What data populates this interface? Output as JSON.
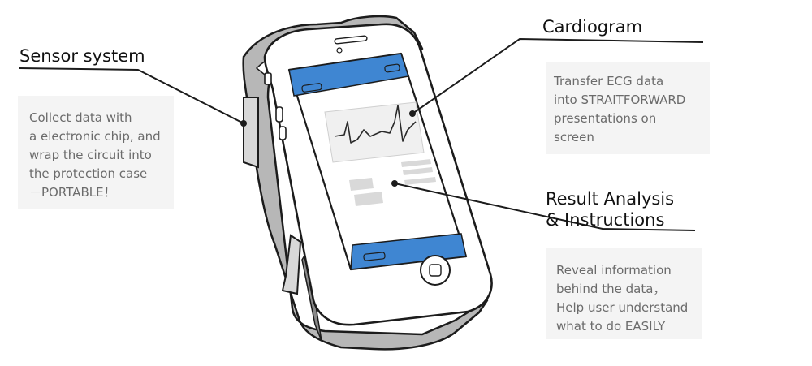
{
  "labels": {
    "sensor": {
      "title": "Sensor system",
      "lines": [
        "Collect data with",
        "a electronic chip, and",
        "wrap the circuit into",
        "the protection case",
        "－PORTABLE！"
      ]
    },
    "cardiogram": {
      "title": "Cardiogram",
      "lines": [
        "Transfer ECG data",
        "into STRAITFORWARD",
        "presentations on",
        "screen"
      ]
    },
    "result": {
      "title_lines": [
        "Result Analysis",
        "& Instructions"
      ],
      "lines": [
        "Reveal information",
        "behind the data，",
        "Help user understand",
        "what to do EASILY"
      ]
    }
  },
  "colors": {
    "screen_bar": "#3f86d2",
    "case_gray": "#b7b7b7",
    "note_bg": "#f4f4f4",
    "note_text": "#6b6b6b",
    "heading_text": "#111111"
  },
  "icons": [
    "home-button-icon",
    "camera-icon",
    "speaker-icon",
    "ecg-waveform-icon"
  ]
}
